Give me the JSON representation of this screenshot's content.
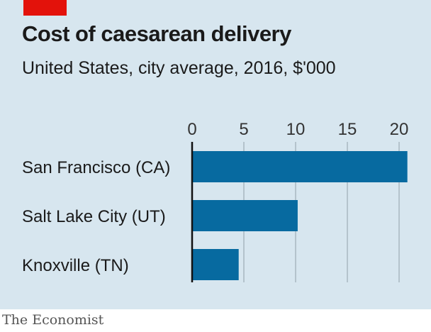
{
  "chart_data": {
    "type": "bar",
    "orientation": "horizontal",
    "title": "Cost of caesarean delivery",
    "subtitle": "United States, city average, 2016, $'000",
    "categories": [
      "San Francisco (CA)",
      "Salt Lake City (UT)",
      "Knoxville (TN)"
    ],
    "values": [
      20.8,
      10.2,
      4.5
    ],
    "xticks": [
      0,
      5,
      10,
      15,
      20
    ],
    "xlim": [
      0,
      21
    ],
    "grid": true,
    "bar_color": "#076aa0"
  },
  "source": "The Economist"
}
